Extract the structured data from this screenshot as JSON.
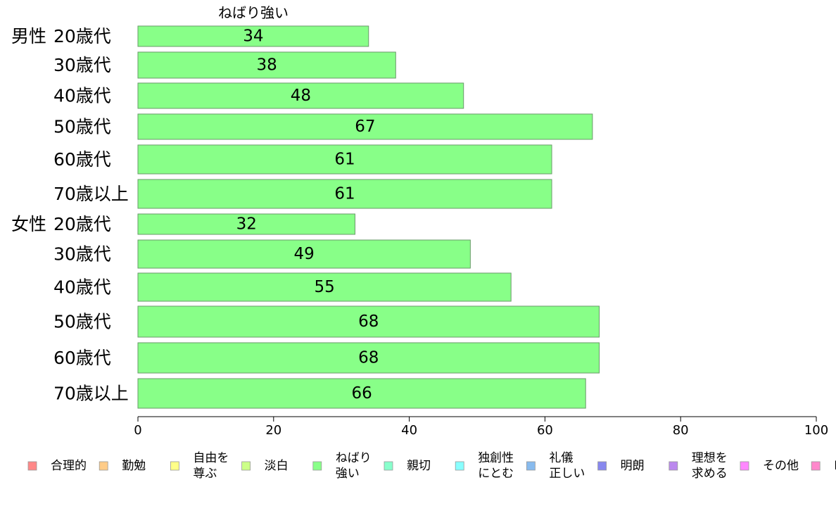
{
  "chart_data": {
    "type": "bar",
    "orientation": "horizontal",
    "series_title": "ねばり強い",
    "categories": [
      {
        "group": "男性",
        "label": "20歳代"
      },
      {
        "group": "",
        "label": "30歳代"
      },
      {
        "group": "",
        "label": "40歳代"
      },
      {
        "group": "",
        "label": "50歳代"
      },
      {
        "group": "",
        "label": "60歳代"
      },
      {
        "group": "",
        "label": "70歳以上"
      },
      {
        "group": "女性",
        "label": "20歳代"
      },
      {
        "group": "",
        "label": "30歳代"
      },
      {
        "group": "",
        "label": "40歳代"
      },
      {
        "group": "",
        "label": "50歳代"
      },
      {
        "group": "",
        "label": "60歳代"
      },
      {
        "group": "",
        "label": "70歳以上"
      }
    ],
    "values": [
      34,
      38,
      48,
      67,
      61,
      61,
      32,
      49,
      55,
      68,
      68,
      66
    ],
    "value_labels": [
      "34",
      "38",
      "48",
      "67",
      "61",
      "61",
      "32",
      "49",
      "55",
      "68",
      "68",
      "66"
    ],
    "xlim": [
      0,
      100
    ],
    "xticks": [
      "0",
      "20",
      "40",
      "60",
      "80",
      "100"
    ],
    "bar_color": "#88ff88",
    "bar_border": "#6a9a6a",
    "grid": false,
    "legend_position": "bottom",
    "legend": [
      {
        "lines": [
          "合理的"
        ],
        "color": "#ff8888"
      },
      {
        "lines": [
          "勤勉"
        ],
        "color": "#ffcc88"
      },
      {
        "lines": [
          "自由を",
          "尊ぶ"
        ],
        "color": "#ffff88"
      },
      {
        "lines": [
          "淡白"
        ],
        "color": "#ccff88"
      },
      {
        "lines": [
          "ねばり",
          "強い"
        ],
        "color": "#88ff88"
      },
      {
        "lines": [
          "親切"
        ],
        "color": "#88ffcc"
      },
      {
        "lines": [
          "独創性",
          "にとむ"
        ],
        "color": "#88ffff"
      },
      {
        "lines": [
          "礼儀",
          "正しい"
        ],
        "color": "#88bbee"
      },
      {
        "lines": [
          "明朗"
        ],
        "color": "#8888ee"
      },
      {
        "lines": [
          "理想を",
          "求める"
        ],
        "color": "#bb88ee"
      },
      {
        "lines": [
          "その他"
        ],
        "color": "#ff88ff"
      },
      {
        "lines": [
          "D"
        ],
        "color": "#ff88cc"
      }
    ]
  }
}
